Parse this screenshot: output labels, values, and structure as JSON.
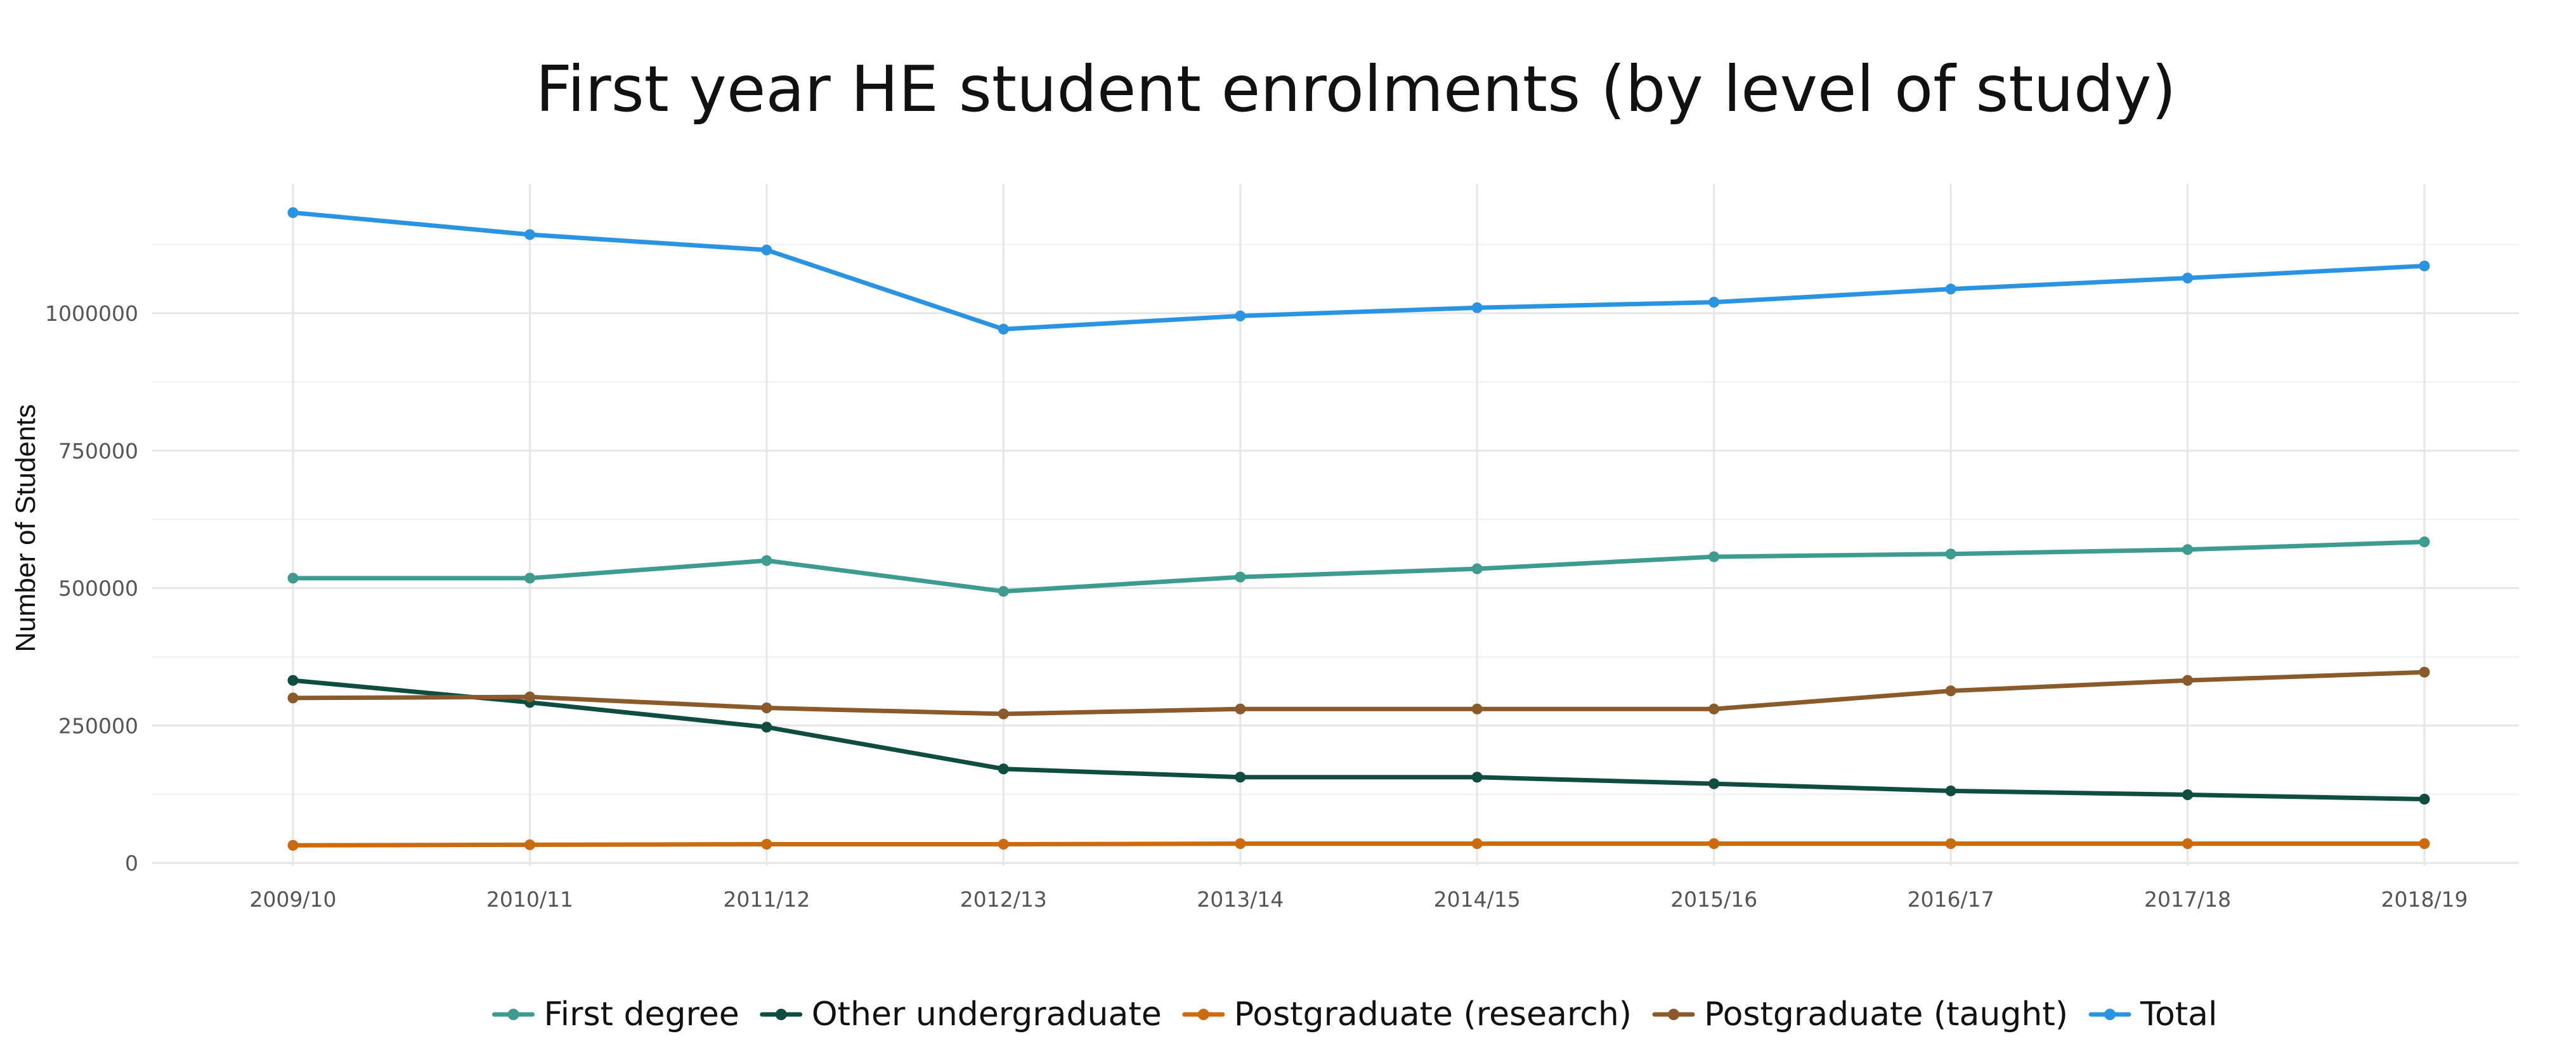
{
  "chart_data": {
    "type": "line",
    "title": "First year HE student enrolments (by level of study)",
    "xlabel": "",
    "ylabel": "Number of Students",
    "categories": [
      "2009/10",
      "2010/11",
      "2011/12",
      "2012/13",
      "2013/14",
      "2014/15",
      "2015/16",
      "2016/17",
      "2017/18",
      "2018/19"
    ],
    "ylim": [
      0,
      1250000
    ],
    "yticks": [
      0,
      250000,
      500000,
      750000,
      1000000
    ],
    "ytick_labels": [
      "0",
      "250000",
      "500000",
      "750000",
      "1000000"
    ],
    "grid": true,
    "legend_position": "bottom",
    "series": [
      {
        "name": "First degree",
        "color": "#3d9b8f",
        "values": [
          518000,
          518000,
          550000,
          494000,
          520000,
          535000,
          557000,
          562000,
          570000,
          584000
        ]
      },
      {
        "name": "Other undergraduate",
        "color": "#0e4d3f",
        "values": [
          332000,
          292000,
          247000,
          171000,
          156000,
          156000,
          144000,
          131000,
          124000,
          116000
        ]
      },
      {
        "name": "Postgraduate (research)",
        "color": "#cc6a0e",
        "values": [
          32000,
          33000,
          34000,
          34000,
          35000,
          35000,
          35000,
          35000,
          35000,
          35000
        ]
      },
      {
        "name": "Postgraduate (taught)",
        "color": "#8b5a2b",
        "values": [
          300000,
          302000,
          282000,
          271000,
          280000,
          280000,
          280000,
          313000,
          332000,
          347000
        ]
      },
      {
        "name": "Total",
        "color": "#2b94e2",
        "values": [
          1183000,
          1143000,
          1115000,
          971000,
          995000,
          1010000,
          1020000,
          1044000,
          1064000,
          1086000
        ]
      }
    ]
  }
}
